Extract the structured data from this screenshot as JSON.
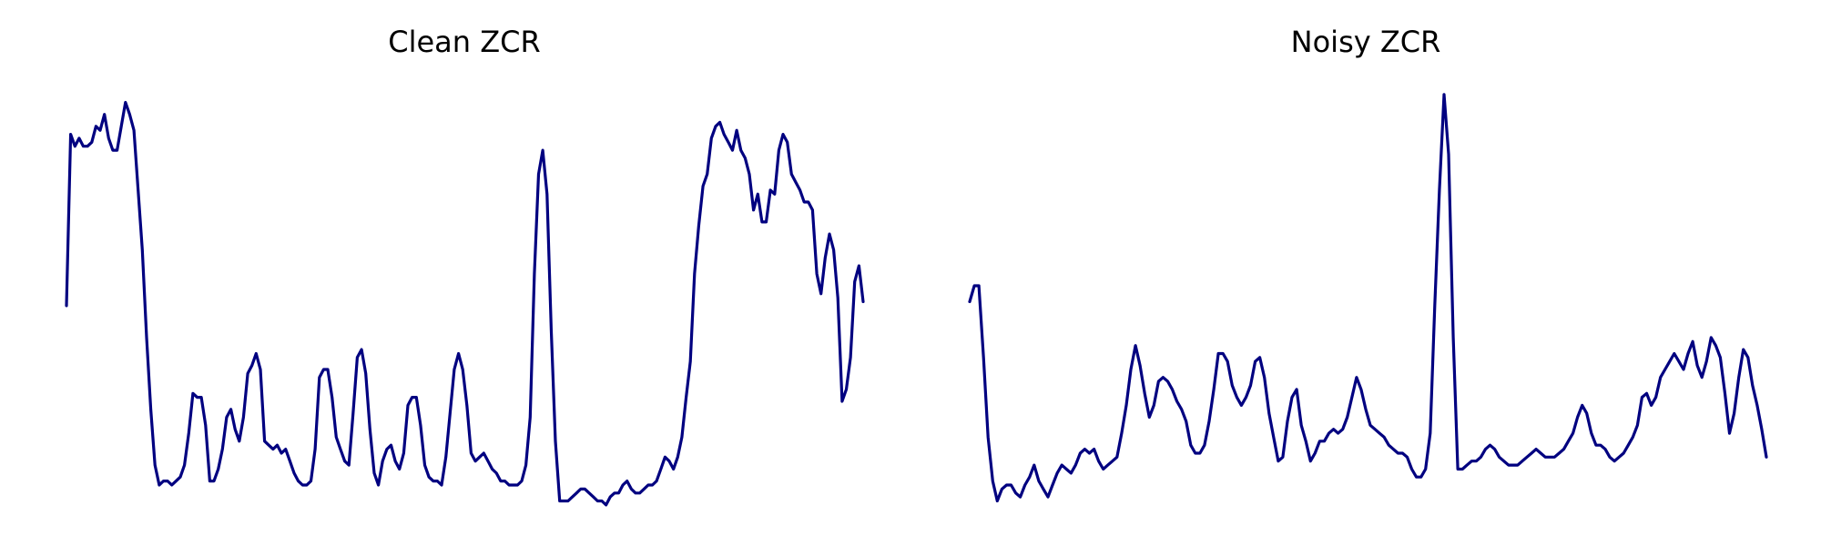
{
  "chart_data": [
    {
      "type": "line",
      "title": "Clean ZCR",
      "xlabel": "",
      "ylabel": "",
      "axes": "off",
      "grid": false,
      "legend": "none",
      "color": "#000080",
      "ylim": [
        0,
        1
      ],
      "y": [
        0.45,
        0.88,
        0.85,
        0.87,
        0.85,
        0.85,
        0.86,
        0.9,
        0.89,
        0.93,
        0.87,
        0.84,
        0.84,
        0.9,
        0.96,
        0.93,
        0.89,
        0.74,
        0.59,
        0.37,
        0.19,
        0.05,
        0.0,
        0.01,
        0.01,
        0.0,
        0.01,
        0.02,
        0.05,
        0.13,
        0.23,
        0.22,
        0.22,
        0.15,
        0.01,
        0.01,
        0.04,
        0.09,
        0.17,
        0.19,
        0.14,
        0.11,
        0.17,
        0.28,
        0.3,
        0.33,
        0.29,
        0.11,
        0.1,
        0.09,
        0.1,
        0.08,
        0.09,
        0.06,
        0.03,
        0.01,
        0.0,
        0.0,
        0.01,
        0.09,
        0.27,
        0.29,
        0.29,
        0.22,
        0.12,
        0.09,
        0.06,
        0.05,
        0.18,
        0.32,
        0.34,
        0.28,
        0.14,
        0.03,
        0.0,
        0.06,
        0.09,
        0.1,
        0.06,
        0.04,
        0.08,
        0.2,
        0.22,
        0.22,
        0.15,
        0.05,
        0.02,
        0.01,
        0.01,
        0.0,
        0.07,
        0.18,
        0.29,
        0.33,
        0.29,
        0.2,
        0.08,
        0.06,
        0.07,
        0.08,
        0.06,
        0.04,
        0.03,
        0.01,
        0.01,
        0.0,
        0.0,
        0.0,
        0.01,
        0.05,
        0.17,
        0.53,
        0.78,
        0.84,
        0.73,
        0.39,
        0.11,
        -0.04,
        -0.04,
        -0.04,
        -0.03,
        -0.02,
        -0.01,
        -0.01,
        -0.02,
        -0.03,
        -0.04,
        -0.04,
        -0.05,
        -0.03,
        -0.02,
        -0.02,
        0.0,
        0.01,
        -0.01,
        -0.02,
        -0.02,
        -0.01,
        0.0,
        0.0,
        0.01,
        0.04,
        0.07,
        0.06,
        0.04,
        0.07,
        0.12,
        0.22,
        0.31,
        0.53,
        0.65,
        0.75,
        0.78,
        0.87,
        0.9,
        0.91,
        0.88,
        0.86,
        0.84,
        0.89,
        0.84,
        0.82,
        0.78,
        0.69,
        0.73,
        0.66,
        0.66,
        0.74,
        0.73,
        0.84,
        0.88,
        0.86,
        0.78,
        0.76,
        0.74,
        0.71,
        0.71,
        0.69,
        0.53,
        0.48,
        0.57,
        0.63,
        0.59,
        0.47,
        0.21,
        0.24,
        0.32,
        0.51,
        0.55,
        0.46
      ]
    },
    {
      "type": "line",
      "title": "Noisy ZCR",
      "xlabel": "",
      "ylabel": "",
      "axes": "off",
      "grid": false,
      "legend": "none",
      "color": "#000080",
      "ylim": [
        0,
        1
      ],
      "y": [
        0.46,
        0.5,
        0.5,
        0.32,
        0.12,
        0.01,
        -0.04,
        -0.01,
        0.0,
        0.0,
        -0.02,
        -0.03,
        0.0,
        0.02,
        0.05,
        0.01,
        -0.01,
        -0.03,
        0.0,
        0.03,
        0.05,
        0.04,
        0.03,
        0.05,
        0.08,
        0.09,
        0.08,
        0.09,
        0.06,
        0.04,
        0.05,
        0.06,
        0.07,
        0.13,
        0.2,
        0.29,
        0.35,
        0.3,
        0.23,
        0.17,
        0.2,
        0.26,
        0.27,
        0.26,
        0.24,
        0.21,
        0.19,
        0.16,
        0.1,
        0.08,
        0.08,
        0.1,
        0.16,
        0.24,
        0.33,
        0.33,
        0.31,
        0.25,
        0.22,
        0.2,
        0.22,
        0.25,
        0.31,
        0.32,
        0.27,
        0.18,
        0.12,
        0.06,
        0.07,
        0.16,
        0.22,
        0.24,
        0.15,
        0.11,
        0.06,
        0.08,
        0.11,
        0.11,
        0.13,
        0.14,
        0.13,
        0.14,
        0.17,
        0.22,
        0.27,
        0.24,
        0.19,
        0.15,
        0.14,
        0.13,
        0.12,
        0.1,
        0.09,
        0.08,
        0.08,
        0.07,
        0.04,
        0.02,
        0.02,
        0.04,
        0.13,
        0.45,
        0.74,
        0.98,
        0.83,
        0.37,
        0.04,
        0.04,
        0.05,
        0.06,
        0.06,
        0.07,
        0.09,
        0.1,
        0.09,
        0.07,
        0.06,
        0.05,
        0.05,
        0.05,
        0.06,
        0.07,
        0.08,
        0.09,
        0.08,
        0.07,
        0.07,
        0.07,
        0.08,
        0.09,
        0.11,
        0.13,
        0.17,
        0.2,
        0.18,
        0.13,
        0.1,
        0.1,
        0.09,
        0.07,
        0.06,
        0.07,
        0.08,
        0.1,
        0.12,
        0.15,
        0.22,
        0.23,
        0.2,
        0.22,
        0.27,
        0.29,
        0.31,
        0.33,
        0.31,
        0.29,
        0.33,
        0.36,
        0.3,
        0.27,
        0.31,
        0.37,
        0.35,
        0.32,
        0.23,
        0.13,
        0.18,
        0.27,
        0.34,
        0.32,
        0.25,
        0.2,
        0.14,
        0.07
      ]
    }
  ]
}
